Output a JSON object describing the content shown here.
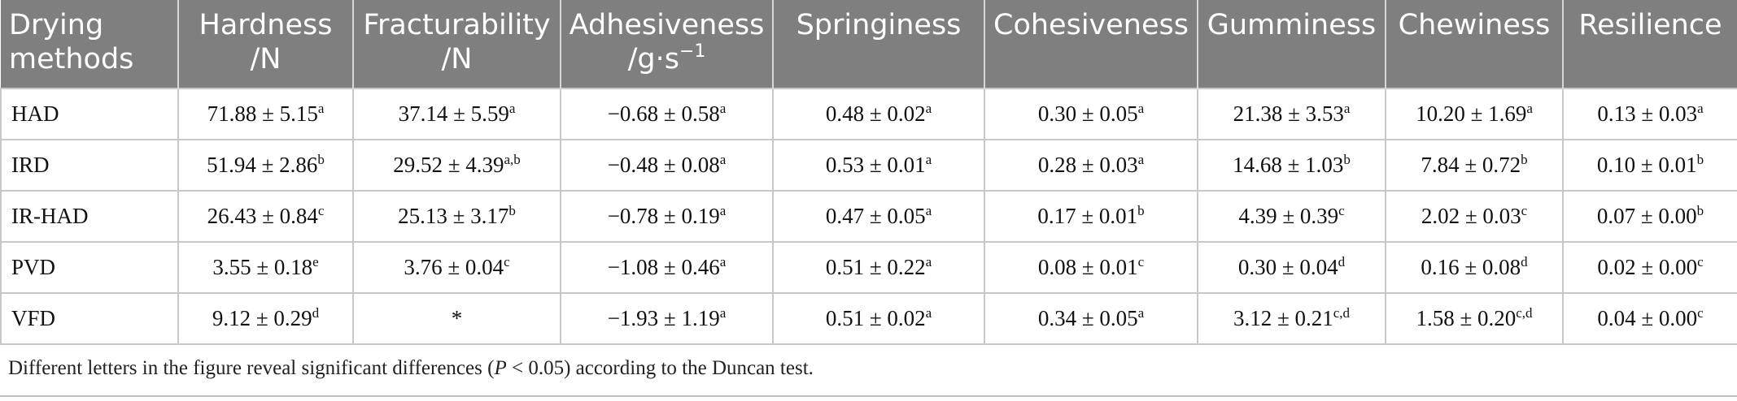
{
  "table": {
    "header": [
      {
        "text": "Drying methods"
      },
      {
        "text": "Hardness",
        "unit": "/N"
      },
      {
        "text": "Fracturability",
        "unit": "/N"
      },
      {
        "text": "Adhesiveness",
        "unit": "/g·s",
        "unit_sup": "−1"
      },
      {
        "text": "Springiness"
      },
      {
        "text": "Cohesiveness"
      },
      {
        "text": "Gumminess"
      },
      {
        "text": "Chewiness"
      },
      {
        "text": "Resilience"
      }
    ],
    "rows": [
      [
        {
          "text": "HAD"
        },
        {
          "text": "71.88 ± 5.15",
          "sup": "a"
        },
        {
          "text": "37.14 ± 5.59",
          "sup": "a"
        },
        {
          "text": "−0.68 ± 0.58",
          "sup": "a"
        },
        {
          "text": "0.48 ± 0.02",
          "sup": "a"
        },
        {
          "text": "0.30 ± 0.05",
          "sup": "a"
        },
        {
          "text": "21.38 ± 3.53",
          "sup": "a"
        },
        {
          "text": "10.20 ± 1.69",
          "sup": "a"
        },
        {
          "text": "0.13 ± 0.03",
          "sup": "a"
        }
      ],
      [
        {
          "text": "IRD"
        },
        {
          "text": "51.94 ± 2.86",
          "sup": "b"
        },
        {
          "text": "29.52 ± 4.39",
          "sup": "a,b"
        },
        {
          "text": "−0.48 ± 0.08",
          "sup": "a"
        },
        {
          "text": "0.53 ± 0.01",
          "sup": "a"
        },
        {
          "text": "0.28 ± 0.03",
          "sup": "a"
        },
        {
          "text": "14.68 ± 1.03",
          "sup": "b"
        },
        {
          "text": "7.84 ± 0.72",
          "sup": "b"
        },
        {
          "text": "0.10 ± 0.01",
          "sup": "b"
        }
      ],
      [
        {
          "text": "IR-HAD"
        },
        {
          "text": "26.43 ± 0.84",
          "sup": "c"
        },
        {
          "text": "25.13 ± 3.17",
          "sup": "b"
        },
        {
          "text": "−0.78 ± 0.19",
          "sup": "a"
        },
        {
          "text": "0.47 ± 0.05",
          "sup": "a"
        },
        {
          "text": "0.17 ± 0.01",
          "sup": "b"
        },
        {
          "text": "4.39 ± 0.39",
          "sup": "c"
        },
        {
          "text": "2.02 ± 0.03",
          "sup": "c"
        },
        {
          "text": "0.07 ± 0.00",
          "sup": "b"
        }
      ],
      [
        {
          "text": "PVD"
        },
        {
          "text": "3.55 ± 0.18",
          "sup": "e"
        },
        {
          "text": "3.76 ± 0.04",
          "sup": "c"
        },
        {
          "text": "−1.08 ± 0.46",
          "sup": "a"
        },
        {
          "text": "0.51 ± 0.22",
          "sup": "a"
        },
        {
          "text": "0.08 ± 0.01",
          "sup": "c"
        },
        {
          "text": "0.30 ± 0.04",
          "sup": "d"
        },
        {
          "text": "0.16 ± 0.08",
          "sup": "d"
        },
        {
          "text": "0.02 ± 0.00",
          "sup": "c"
        }
      ],
      [
        {
          "text": "VFD"
        },
        {
          "text": "9.12 ± 0.29",
          "sup": "d"
        },
        {
          "text": "*"
        },
        {
          "text": "−1.93 ± 1.19",
          "sup": "a"
        },
        {
          "text": "0.51 ± 0.02",
          "sup": "a"
        },
        {
          "text": "0.34 ± 0.05",
          "sup": "a"
        },
        {
          "text": "3.12 ± 0.21",
          "sup": "c,d"
        },
        {
          "text": "1.58 ± 0.20",
          "sup": "c,d"
        },
        {
          "text": "0.04 ± 0.00",
          "sup": "c"
        }
      ]
    ]
  },
  "footnote": {
    "before": "Different letters in the figure reveal significant differences (",
    "italic": "P",
    "after": " < 0.05) according to the Duncan test."
  }
}
